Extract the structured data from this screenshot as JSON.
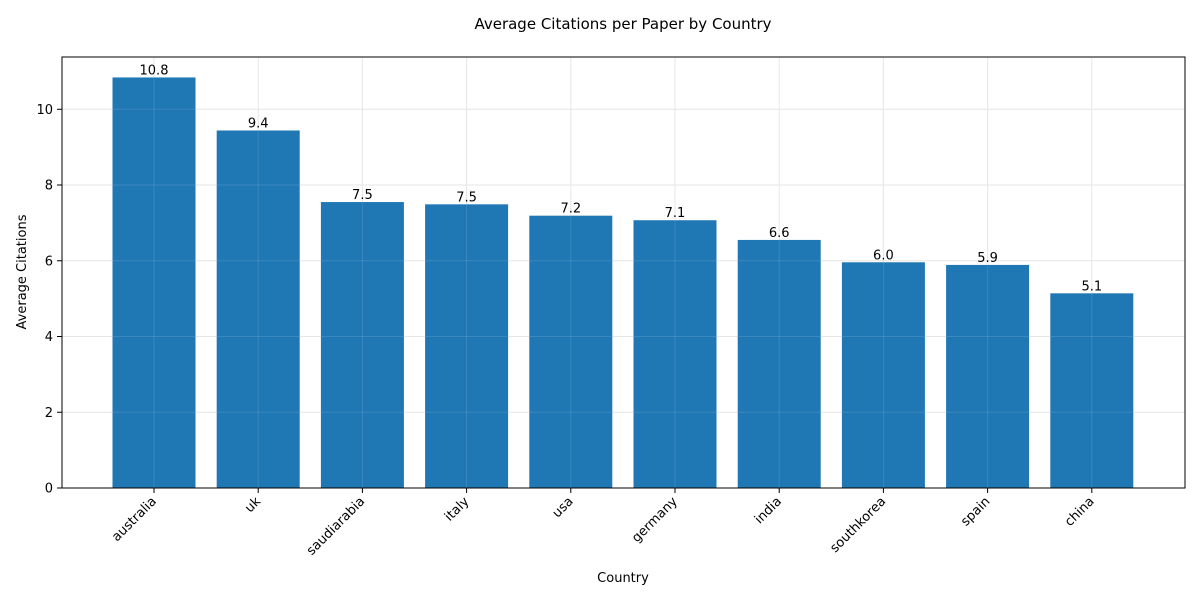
{
  "chart_data": {
    "type": "bar",
    "title": "Average Citations per Paper by Country",
    "xlabel": "Country",
    "ylabel": "Average Citations",
    "categories": [
      "australia",
      "uk",
      "saudiarabia",
      "italy",
      "usa",
      "germany",
      "india",
      "southkorea",
      "spain",
      "china"
    ],
    "values": [
      10.84,
      9.44,
      7.55,
      7.49,
      7.19,
      7.07,
      6.55,
      5.96,
      5.89,
      5.14
    ],
    "value_labels": [
      "10.8",
      "9.4",
      "7.5",
      "7.5",
      "7.2",
      "7.1",
      "6.6",
      "6.0",
      "5.9",
      "5.1"
    ],
    "yticks": [
      0,
      2,
      4,
      6,
      8,
      10
    ],
    "ylim": [
      0,
      11.38
    ],
    "grid": true,
    "bar_color": "#1f77b4"
  }
}
